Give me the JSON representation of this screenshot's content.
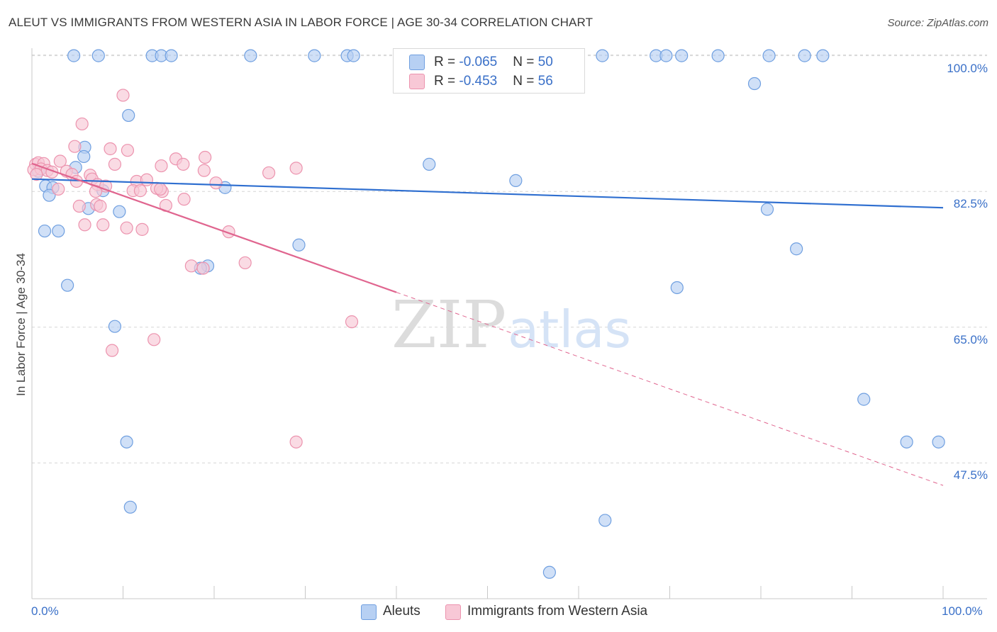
{
  "title": "ALEUT VS IMMIGRANTS FROM WESTERN ASIA IN LABOR FORCE | AGE 30-34 CORRELATION CHART",
  "source": "Source: ZipAtlas.com",
  "watermark": {
    "zip": "ZIP",
    "atlas": "atlas"
  },
  "colors": {
    "aleut_fill": "#b7d0f3",
    "aleut_stroke": "#6f9fe0",
    "aleut_line": "#2f6fd0",
    "wa_fill": "#f8c8d6",
    "wa_stroke": "#ec93ae",
    "wa_line": "#e0658f",
    "axis_text": "#3a70c8",
    "grid": "#d5d5d5"
  },
  "legend": {
    "aleut": {
      "r_label": "R = ",
      "r_value": "-0.065",
      "n_label": "N = ",
      "n_value": "50"
    },
    "wa": {
      "r_label": "R = ",
      "r_value": "-0.453",
      "n_label": "N = ",
      "n_value": "56"
    }
  },
  "bottom_legend": {
    "aleut": "Aleuts",
    "wa": "Immigrants from Western Asia"
  },
  "chart_data": {
    "type": "scatter",
    "title": "ALEUT VS IMMIGRANTS FROM WESTERN ASIA IN LABOR FORCE | AGE 30-34 CORRELATION CHART",
    "xlabel": "",
    "ylabel": "In Labor Force | Age 30-34",
    "xlim": [
      0,
      100
    ],
    "ylim": [
      30,
      101.7
    ],
    "x_tick_labels": [
      "0.0%",
      "100.0%"
    ],
    "y_ticks": [
      100.0,
      82.5,
      65.0,
      47.5
    ],
    "y_tick_labels": [
      "100.0%",
      "82.5%",
      "65.0%",
      "47.5%"
    ],
    "grid": true,
    "legend_position": "top-center",
    "series": [
      {
        "name": "Aleuts",
        "r": -0.065,
        "n": 50,
        "trend": {
          "x": [
            0,
            100
          ],
          "y": [
            84.1,
            80.4
          ]
        },
        "points": [
          [
            4.6,
            100
          ],
          [
            7.3,
            100
          ],
          [
            13.2,
            100
          ],
          [
            14.2,
            100
          ],
          [
            15.3,
            100
          ],
          [
            24.0,
            100
          ],
          [
            31.0,
            100
          ],
          [
            34.6,
            100
          ],
          [
            35.3,
            100
          ],
          [
            47.5,
            100
          ],
          [
            62.6,
            100
          ],
          [
            68.5,
            100
          ],
          [
            69.6,
            100
          ],
          [
            71.3,
            100
          ],
          [
            75.3,
            100
          ],
          [
            80.9,
            100
          ],
          [
            84.8,
            100
          ],
          [
            86.8,
            100
          ],
          [
            79.3,
            96.4
          ],
          [
            10.6,
            92.3
          ],
          [
            5.8,
            88.2
          ],
          [
            5.7,
            87
          ],
          [
            4.8,
            85.6
          ],
          [
            43.6,
            86
          ],
          [
            0.7,
            85.1
          ],
          [
            1.5,
            83.2
          ],
          [
            2.3,
            83
          ],
          [
            21.2,
            83
          ],
          [
            7.8,
            82.6
          ],
          [
            1.9,
            82
          ],
          [
            53.1,
            83.9
          ],
          [
            6.2,
            80.3
          ],
          [
            9.6,
            79.9
          ],
          [
            1.4,
            77.4
          ],
          [
            2.9,
            77.4
          ],
          [
            80.7,
            80.2
          ],
          [
            29.3,
            75.6
          ],
          [
            83.9,
            75.1
          ],
          [
            19.3,
            72.9
          ],
          [
            18.5,
            72.6
          ],
          [
            3.9,
            70.4
          ],
          [
            70.8,
            70.1
          ],
          [
            9.1,
            65.1
          ],
          [
            91.3,
            55.7
          ],
          [
            10.4,
            50.2
          ],
          [
            96.0,
            50.2
          ],
          [
            99.5,
            50.2
          ],
          [
            10.8,
            41.8
          ],
          [
            62.9,
            40.1
          ],
          [
            56.8,
            33.4
          ]
        ]
      },
      {
        "name": "Immigrants from Western Asia",
        "r": -0.453,
        "n": 56,
        "trend": {
          "x": [
            0,
            40
          ],
          "y": [
            86.1,
            69.5
          ]
        },
        "trend_dashed": {
          "x": [
            40,
            100
          ],
          "y": [
            69.5,
            44.6
          ]
        },
        "points": [
          [
            10.0,
            94.9
          ],
          [
            5.5,
            91.2
          ],
          [
            4.7,
            88.3
          ],
          [
            8.6,
            88
          ],
          [
            10.5,
            87.8
          ],
          [
            15.8,
            86.7
          ],
          [
            19.0,
            86.9
          ],
          [
            0.4,
            86
          ],
          [
            0.7,
            86.2
          ],
          [
            1.3,
            86.1
          ],
          [
            3.1,
            86.4
          ],
          [
            9.1,
            86
          ],
          [
            14.2,
            85.8
          ],
          [
            16.6,
            86
          ],
          [
            0.2,
            85.3
          ],
          [
            1.0,
            85.4
          ],
          [
            1.7,
            85.2
          ],
          [
            2.2,
            85
          ],
          [
            3.8,
            85.1
          ],
          [
            4.4,
            84.7
          ],
          [
            6.4,
            84.6
          ],
          [
            18.9,
            85.2
          ],
          [
            26.0,
            84.9
          ],
          [
            29.0,
            85.5
          ],
          [
            0.5,
            84.7
          ],
          [
            6.6,
            84.1
          ],
          [
            4.9,
            83.8
          ],
          [
            11.5,
            83.8
          ],
          [
            12.6,
            84
          ],
          [
            7.2,
            83.4
          ],
          [
            8.1,
            83.2
          ],
          [
            2.9,
            82.8
          ],
          [
            11.1,
            82.6
          ],
          [
            11.9,
            82.6
          ],
          [
            14.3,
            82.5
          ],
          [
            13.7,
            82.9
          ],
          [
            7.0,
            82.5
          ],
          [
            14.1,
            82.8
          ],
          [
            16.7,
            81.5
          ],
          [
            5.2,
            80.6
          ],
          [
            7.1,
            80.8
          ],
          [
            7.5,
            80.6
          ],
          [
            14.7,
            80.7
          ],
          [
            5.8,
            78.2
          ],
          [
            7.8,
            78.2
          ],
          [
            10.4,
            77.8
          ],
          [
            12.1,
            77.6
          ],
          [
            21.6,
            77.3
          ],
          [
            17.5,
            72.9
          ],
          [
            23.4,
            73.3
          ],
          [
            35.1,
            65.7
          ],
          [
            13.4,
            63.4
          ],
          [
            8.8,
            62
          ],
          [
            29.0,
            50.2
          ],
          [
            18.8,
            72.6
          ],
          [
            20.2,
            83.6
          ]
        ]
      }
    ]
  }
}
